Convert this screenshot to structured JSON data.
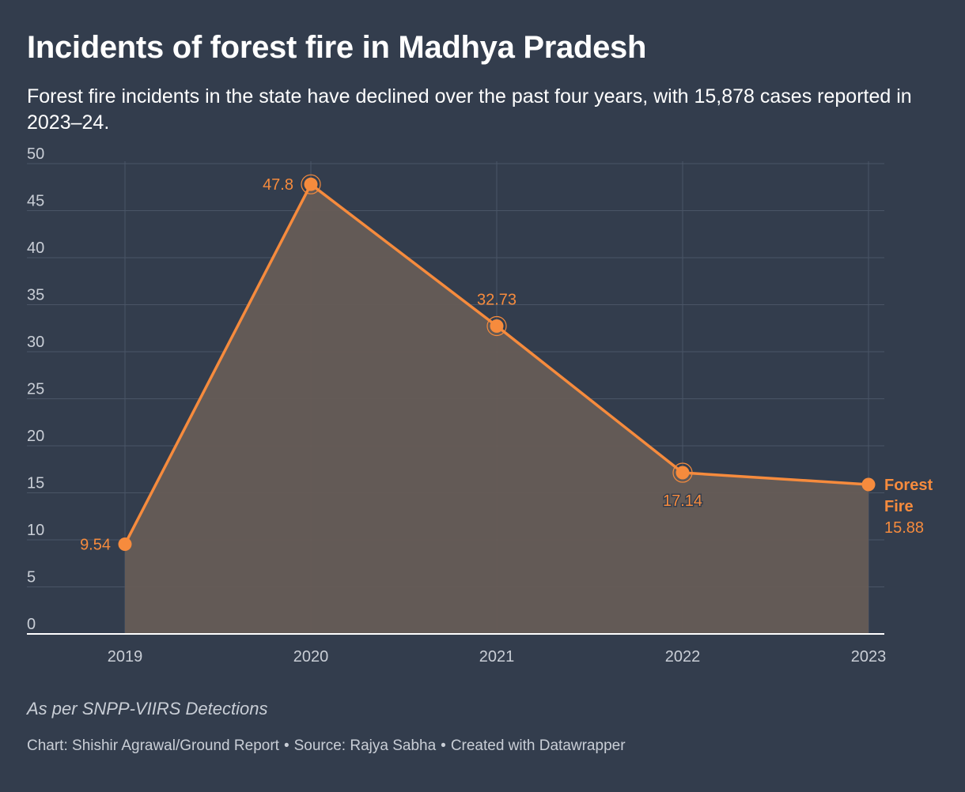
{
  "header": {
    "title": "Incidents of forest fire in Madhya Pradesh",
    "subtitle": "Forest fire incidents in the state have declined over the past four years, with 15,878 cases reported in 2023–24."
  },
  "chart_data": {
    "type": "area",
    "title": "Incidents of forest fire in Madhya Pradesh",
    "xlabel": "",
    "ylabel": "",
    "ylim": [
      0,
      50
    ],
    "yticks": [
      0,
      5,
      10,
      15,
      20,
      25,
      30,
      35,
      40,
      45,
      50
    ],
    "grid": true,
    "categories": [
      "2019",
      "2020",
      "2021",
      "2022",
      "2023"
    ],
    "series": [
      {
        "name": "Forest Fire",
        "name_lines": [
          "Forest",
          "Fire"
        ],
        "values": [
          9.54,
          47.8,
          32.73,
          17.14,
          15.88
        ],
        "labels": [
          "9.54",
          "47.8",
          "32.73",
          "17.14",
          "15.88"
        ]
      }
    ]
  },
  "colors": {
    "background": "#333d4d",
    "line": "#f68b3d",
    "area": "#665c56",
    "grid": "#4a5566",
    "axis_text": "#c9ced6",
    "baseline": "#ffffff",
    "dark_label": "#333d4d"
  },
  "notes": {
    "annotation": "As per SNPP-VIIRS Detections"
  },
  "footer": {
    "chart_credit": "Chart: Shishir Agrawal/Ground Report",
    "source": "Source: Rajya Sabha",
    "tool": "Created with Datawrapper",
    "separator": "•"
  }
}
